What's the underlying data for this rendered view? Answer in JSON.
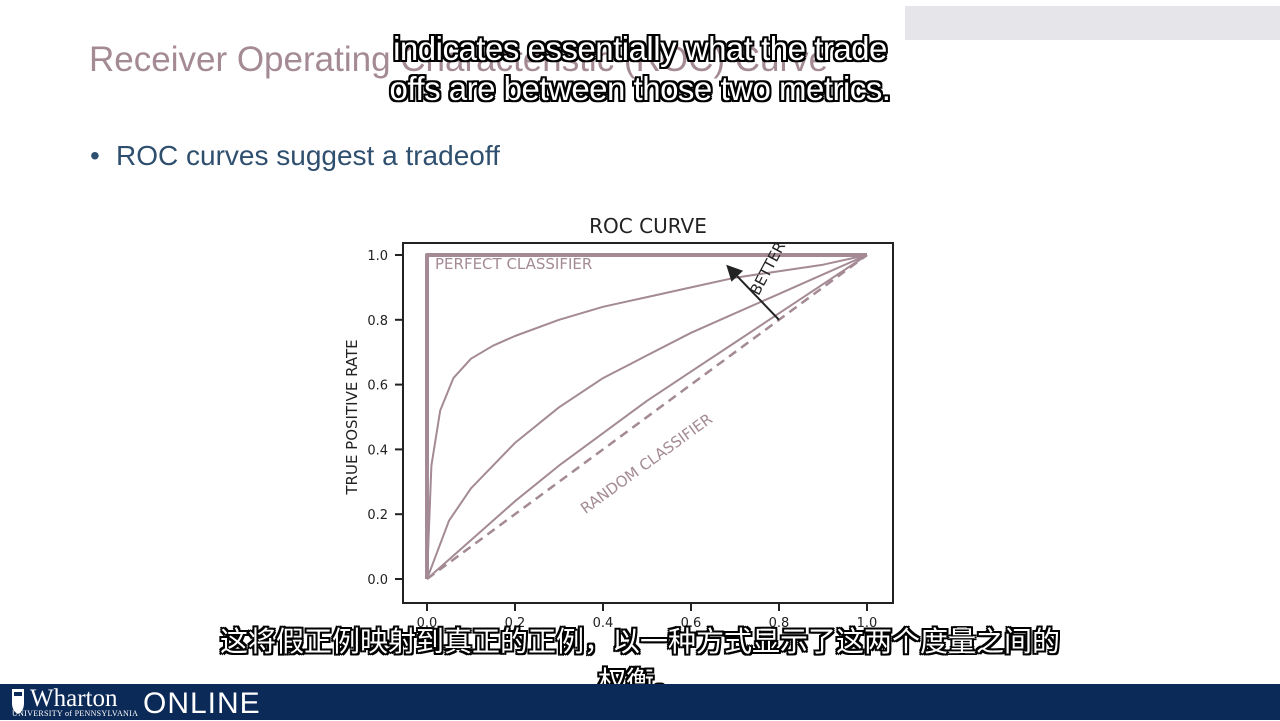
{
  "slide": {
    "title": "Receiver Operating Characteristic (ROC) Curve",
    "bullet": "ROC curves suggest a tradeoff"
  },
  "subtitles": {
    "english_line1": "indicates essentially what the trade",
    "english_line2": "offs are between those two metrics.",
    "chinese_line1": "这将假正例映射到真正的正例，以一种方式显示了这两个度量之间的",
    "chinese_line2": "权衡。"
  },
  "footer": {
    "logo_name": "Wharton",
    "logo_university": "UNIVERSITY of PENNSYLVANIA",
    "logo_online": "ONLINE",
    "shield_icon": "penn-shield-icon"
  },
  "colors": {
    "curve": "#a48a94",
    "axis": "#222222",
    "title": "#a48a94",
    "bullet": "#2f4f6f",
    "footer": "#0c2a57"
  },
  "chart_data": {
    "type": "line",
    "title": "ROC CURVE",
    "xlabel": "",
    "ylabel": "TRUE POSITIVE RATE",
    "xlim": [
      0,
      1
    ],
    "ylim": [
      0,
      1
    ],
    "x_ticks": [
      "0.0",
      "0.2",
      "0.4",
      "0.6",
      "0.8",
      "1.0"
    ],
    "y_ticks": [
      "0.0",
      "0.2",
      "0.4",
      "0.6",
      "0.8",
      "1.0"
    ],
    "series": [
      {
        "name": "PERFECT CLASSIFIER",
        "style": "solid-thick",
        "x": [
          0.0,
          0.0,
          1.0
        ],
        "y": [
          0.0,
          1.0,
          1.0
        ]
      },
      {
        "style": "solid",
        "x": [
          0.0,
          0.01,
          0.03,
          0.06,
          0.1,
          0.15,
          0.2,
          0.3,
          0.4,
          0.5,
          0.6,
          0.7,
          0.8,
          0.9,
          1.0
        ],
        "y": [
          0.0,
          0.35,
          0.52,
          0.62,
          0.68,
          0.72,
          0.75,
          0.8,
          0.84,
          0.87,
          0.9,
          0.93,
          0.95,
          0.97,
          1.0
        ]
      },
      {
        "style": "solid",
        "x": [
          0.0,
          0.05,
          0.1,
          0.2,
          0.3,
          0.4,
          0.5,
          0.6,
          0.7,
          0.8,
          0.9,
          1.0
        ],
        "y": [
          0.0,
          0.18,
          0.28,
          0.42,
          0.53,
          0.62,
          0.69,
          0.76,
          0.82,
          0.88,
          0.94,
          1.0
        ]
      },
      {
        "style": "solid",
        "x": [
          0.0,
          0.1,
          0.2,
          0.3,
          0.4,
          0.5,
          0.6,
          0.7,
          0.8,
          0.9,
          1.0
        ],
        "y": [
          0.0,
          0.12,
          0.24,
          0.35,
          0.45,
          0.55,
          0.64,
          0.73,
          0.82,
          0.91,
          1.0
        ]
      },
      {
        "name": "RANDOM CLASSIFIER",
        "style": "dashed",
        "x": [
          0.0,
          1.0
        ],
        "y": [
          0.0,
          1.0
        ]
      }
    ],
    "annotations": [
      {
        "text": "BETTER",
        "arrow_from": [
          0.8,
          0.8
        ],
        "arrow_to": [
          0.68,
          0.97
        ]
      }
    ],
    "grid": false
  }
}
